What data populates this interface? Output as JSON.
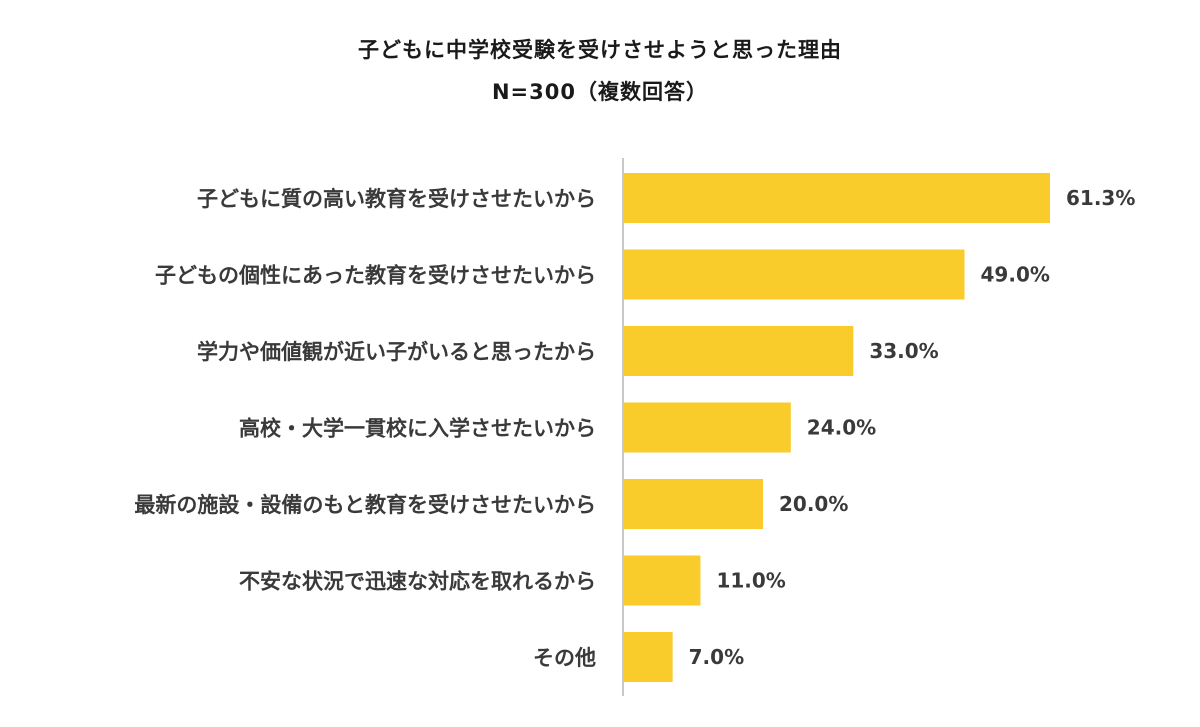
{
  "chart_data": {
    "type": "bar",
    "orientation": "horizontal",
    "title": "子どもに中学校受験を受けさせようと思った理由",
    "subtitle": "N=300（複数回答）",
    "categories": [
      "子どもに質の高い教育を受けさせたいから",
      "子どもの個性にあった教育を受けさせたいから",
      "学力や価値観が近い子がいると思ったから",
      "高校・大学一貫校に入学させたいから",
      "最新の施設・設備のもと教育を受けさせたいから",
      "不安な状況で迅速な対応を取れるから",
      "その他"
    ],
    "values": [
      61.3,
      49.0,
      33.0,
      24.0,
      20.0,
      11.0,
      7.0
    ],
    "value_labels": [
      "61.3%",
      "49.0%",
      "33.0%",
      "24.0%",
      "20.0%",
      "11.0%",
      "7.0%"
    ],
    "unit": "%",
    "xlim": [
      0,
      70
    ],
    "grid": false,
    "legend": "none",
    "colors": {
      "bar": "#F9CC2C",
      "axis": "#C8C8C8",
      "text": "#3a3a3a"
    }
  }
}
